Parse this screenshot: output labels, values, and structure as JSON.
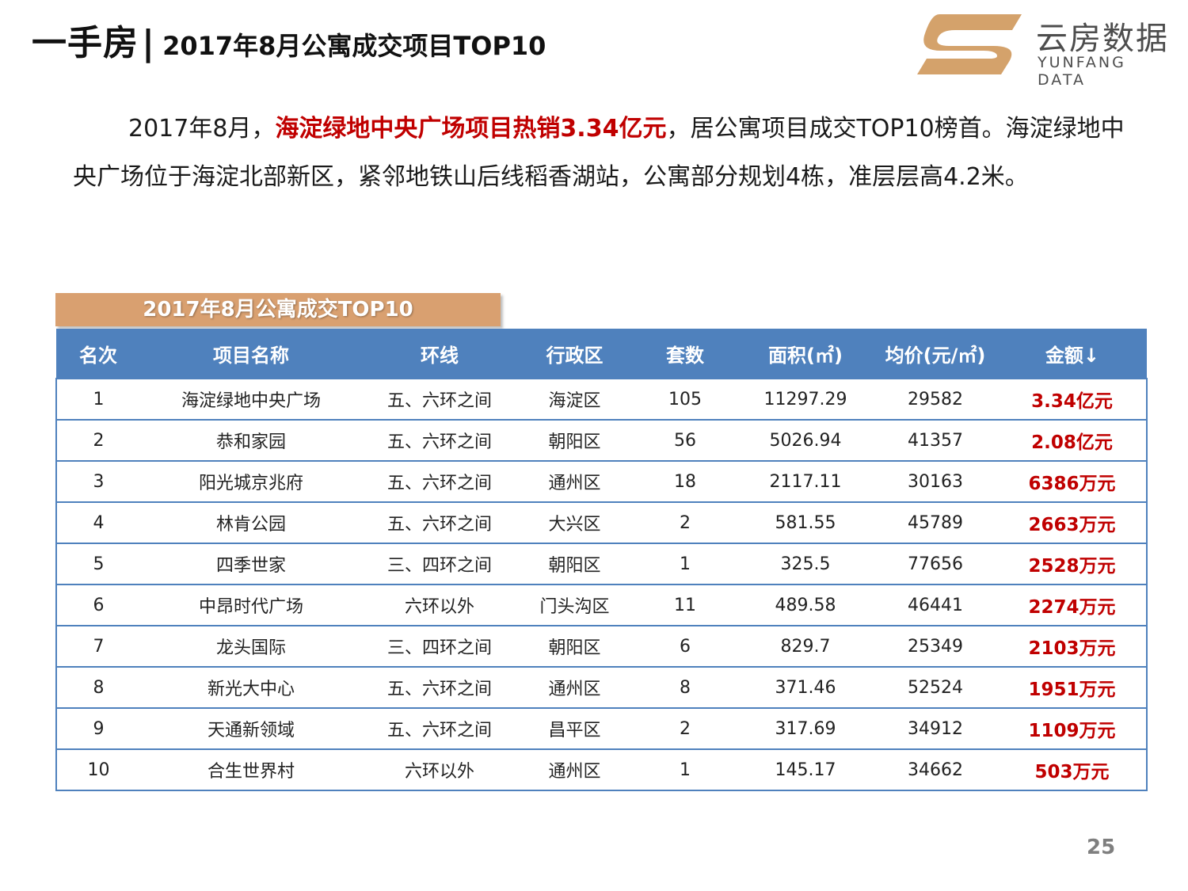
{
  "header": {
    "section": "一手房",
    "divider": "|",
    "title": "2017年8月公寓成交项目TOP10"
  },
  "logo": {
    "name_cn": "云房数据",
    "name_en": "YUNFANG DATA",
    "color": "#d4a26b"
  },
  "intro": {
    "p1": "2017年8月，",
    "highlight": "海淀绿地中央广场项目热销3.34亿元",
    "p2": "，居公寓项目成交TOP10榜首。海淀绿地中央广场位于海淀北部新区，紧邻地铁山后线稻香湖站，公寓部分规划4栋，准层层高4.2米。"
  },
  "table": {
    "caption": "2017年8月公寓成交TOP10",
    "headers": [
      "名次",
      "项目名称",
      "环线",
      "行政区",
      "套数",
      "面积(㎡)",
      "均价(元/㎡)",
      "金额↓"
    ],
    "rows": [
      {
        "rank": "1",
        "name": "海淀绿地中央广场",
        "ring": "五、六环之间",
        "district": "海淀区",
        "units": "105",
        "area": "11297.29",
        "price": "29582",
        "amount": "3.34亿元"
      },
      {
        "rank": "2",
        "name": "恭和家园",
        "ring": "五、六环之间",
        "district": "朝阳区",
        "units": "56",
        "area": "5026.94",
        "price": "41357",
        "amount": "2.08亿元"
      },
      {
        "rank": "3",
        "name": "阳光城京兆府",
        "ring": "五、六环之间",
        "district": "通州区",
        "units": "18",
        "area": "2117.11",
        "price": "30163",
        "amount": "6386万元"
      },
      {
        "rank": "4",
        "name": "林肯公园",
        "ring": "五、六环之间",
        "district": "大兴区",
        "units": "2",
        "area": "581.55",
        "price": "45789",
        "amount": "2663万元"
      },
      {
        "rank": "5",
        "name": "四季世家",
        "ring": "三、四环之间",
        "district": "朝阳区",
        "units": "1",
        "area": "325.5",
        "price": "77656",
        "amount": "2528万元"
      },
      {
        "rank": "6",
        "name": "中昂时代广场",
        "ring": "六环以外",
        "district": "门头沟区",
        "units": "11",
        "area": "489.58",
        "price": "46441",
        "amount": "2274万元"
      },
      {
        "rank": "7",
        "name": "龙头国际",
        "ring": "三、四环之间",
        "district": "朝阳区",
        "units": "6",
        "area": "829.7",
        "price": "25349",
        "amount": "2103万元"
      },
      {
        "rank": "8",
        "name": "新光大中心",
        "ring": "五、六环之间",
        "district": "通州区",
        "units": "8",
        "area": "371.46",
        "price": "52524",
        "amount": "1951万元"
      },
      {
        "rank": "9",
        "name": "天通新领域",
        "ring": "五、六环之间",
        "district": "昌平区",
        "units": "2",
        "area": "317.69",
        "price": "34912",
        "amount": "1109万元"
      },
      {
        "rank": "10",
        "name": "合生世界村",
        "ring": "六环以外",
        "district": "通州区",
        "units": "1",
        "area": "145.17",
        "price": "34662",
        "amount": "503万元"
      }
    ]
  },
  "footer": {
    "page_number": "25"
  }
}
